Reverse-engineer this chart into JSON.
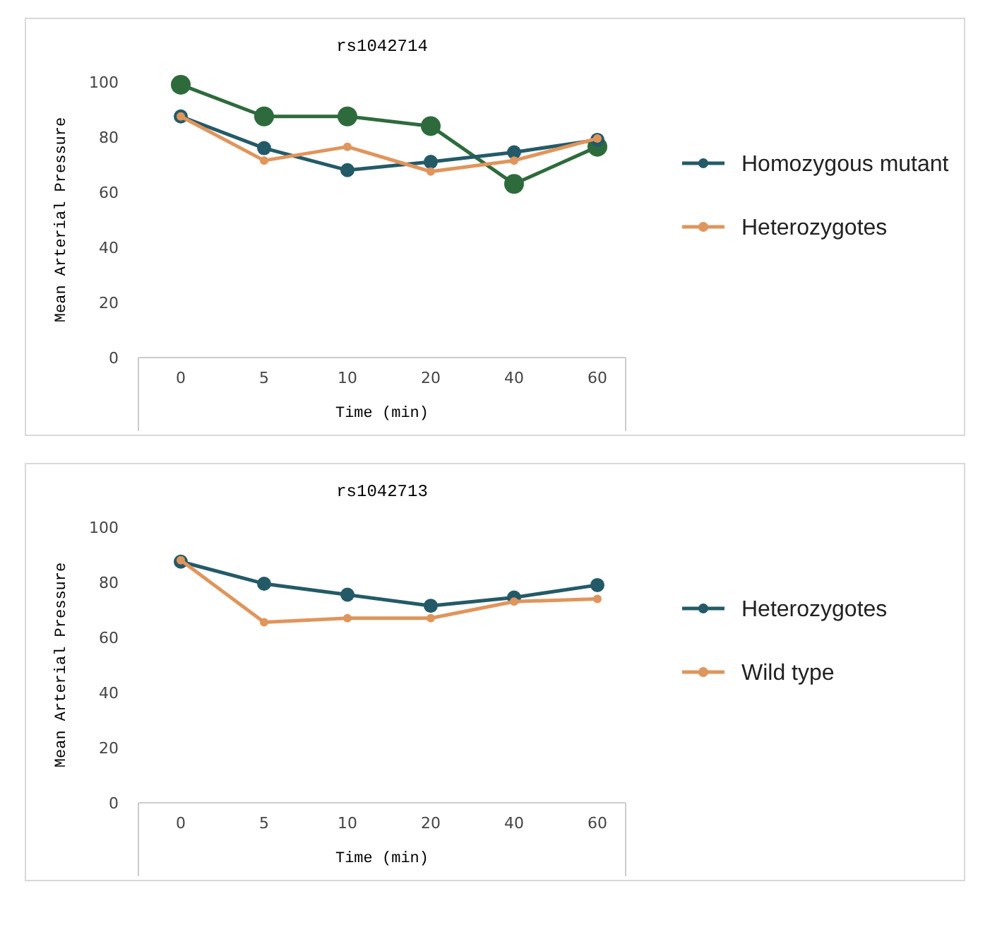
{
  "chart_data": [
    {
      "type": "line",
      "title": "rs1042714",
      "xlabel": "Time  (min)",
      "ylabel": "Mean Arterial Pressure",
      "categories": [
        "0",
        "5",
        "10",
        "20",
        "40",
        "60"
      ],
      "ylim": [
        0,
        100
      ],
      "yticks": [
        0,
        20,
        40,
        60,
        80,
        100
      ],
      "grid": false,
      "legend": "right",
      "marker": "circle",
      "line_style": "solid",
      "series": [
        {
          "color": "#2e6b3c",
          "values": [
            99,
            87.5,
            87.5,
            84,
            63,
            76.5
          ]
        },
        {
          "name": "Homozygous mutant",
          "color": "#245a68",
          "values": [
            87.5,
            76,
            68,
            71,
            74.5,
            79
          ]
        },
        {
          "name": "Heterozygotes",
          "color": "#e0955c",
          "values": [
            87.5,
            71.5,
            76.5,
            67.5,
            71.5,
            79.5
          ]
        }
      ]
    },
    {
      "type": "line",
      "title": "rs1042713",
      "xlabel": "Time  (min)",
      "ylabel": "Mean Arterial Pressure",
      "categories": [
        "0",
        "5",
        "10",
        "20",
        "40",
        "60"
      ],
      "ylim": [
        0,
        100
      ],
      "yticks": [
        0,
        20,
        40,
        60,
        80,
        100
      ],
      "grid": false,
      "legend": "right",
      "marker": "circle",
      "line_style": "solid",
      "series": [
        {
          "name": "Heterozygotes",
          "color": "#245a68",
          "values": [
            87.5,
            79.5,
            75.5,
            71.5,
            74.5,
            79
          ]
        },
        {
          "name": "Wild type",
          "color": "#e0955c",
          "values": [
            88,
            65.5,
            67,
            67,
            73,
            74
          ]
        }
      ]
    }
  ]
}
